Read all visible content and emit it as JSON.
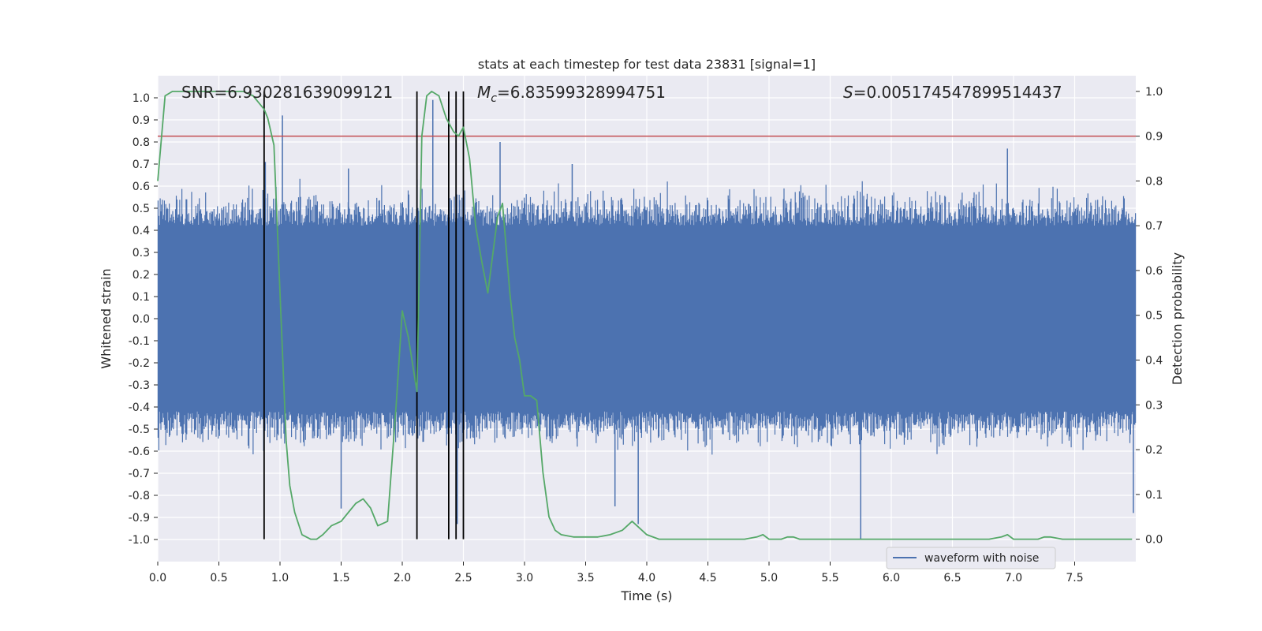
{
  "chart_data": {
    "type": "line",
    "title": "stats at each timestep for test data 23831 [signal=1]",
    "xlabel": "Time (s)",
    "ylabel": "Whitened strain",
    "ylabel_right": "Detection probability",
    "xlim": [
      0.0,
      8.0
    ],
    "ylim": [
      -1.1,
      1.1
    ],
    "ylim_right": [
      -0.05,
      1.035
    ],
    "x_ticks": [
      "0.0",
      "0.5",
      "1.0",
      "1.5",
      "2.0",
      "2.5",
      "3.0",
      "3.5",
      "4.0",
      "4.5",
      "5.0",
      "5.5",
      "6.0",
      "6.5",
      "7.0",
      "7.5"
    ],
    "y_ticks": [
      "1.0",
      "0.9",
      "0.8",
      "0.7",
      "0.6",
      "0.5",
      "0.4",
      "0.3",
      "0.2",
      "0.1",
      "0.0",
      "-0.1",
      "-0.2",
      "-0.3",
      "-0.4",
      "-0.5",
      "-0.6",
      "-0.7",
      "-0.8",
      "-0.9",
      "-1.0"
    ],
    "y_ticks_right": [
      "1.0",
      "0.9",
      "0.8",
      "0.7",
      "0.6",
      "0.5",
      "0.4",
      "0.3",
      "0.2",
      "0.1",
      "0.0"
    ],
    "annotations": {
      "snr": "SNR=6.930281639099121",
      "mc_symbol": "M",
      "mc_subscript": "c",
      "mc_value": "=6.83599328994751",
      "s_symbol": "S",
      "s_value": "=0.005174547899514437"
    },
    "legend": {
      "label": "waveform with noise",
      "location": "lower right"
    },
    "threshold": {
      "value": 0.9,
      "axis": "right",
      "color": "#c44e52"
    },
    "vertical_lines": [
      0.87,
      2.12,
      2.38,
      2.44,
      2.5
    ],
    "series": [
      {
        "name": "waveform with noise",
        "axis": "left",
        "style": "noise_band",
        "color": "#4c72b0",
        "core_amplitude": 0.42,
        "spikes": [
          {
            "x": 1.02,
            "y": 0.92
          },
          {
            "x": 2.25,
            "y": 0.99
          },
          {
            "x": 2.44,
            "y": 0.93
          },
          {
            "x": 2.8,
            "y": 0.8
          },
          {
            "x": 0.88,
            "y": 0.71
          },
          {
            "x": 6.95,
            "y": 0.77
          },
          {
            "x": 5.75,
            "y": -1.0
          },
          {
            "x": 7.98,
            "y": -0.88
          },
          {
            "x": 3.93,
            "y": -0.93
          },
          {
            "x": 2.45,
            "y": -0.93
          },
          {
            "x": 3.74,
            "y": -0.85
          },
          {
            "x": 1.5,
            "y": -0.86
          },
          {
            "x": 1.56,
            "y": 0.68
          },
          {
            "x": 3.39,
            "y": 0.7
          }
        ]
      },
      {
        "name": "detection probability",
        "axis": "right",
        "color": "#55a868",
        "x": [
          0.0,
          0.06,
          0.12,
          0.25,
          0.4,
          0.55,
          0.7,
          0.78,
          0.87,
          0.9,
          0.95,
          1.0,
          1.05,
          1.08,
          1.12,
          1.18,
          1.25,
          1.3,
          1.35,
          1.42,
          1.5,
          1.56,
          1.62,
          1.68,
          1.74,
          1.8,
          1.88,
          1.95,
          2.0,
          2.05,
          2.12,
          2.16,
          2.2,
          2.24,
          2.3,
          2.36,
          2.42,
          2.46,
          2.5,
          2.55,
          2.6,
          2.65,
          2.7,
          2.78,
          2.82,
          2.88,
          2.92,
          2.96,
          3.0,
          3.05,
          3.1,
          3.15,
          3.2,
          3.25,
          3.3,
          3.4,
          3.5,
          3.6,
          3.7,
          3.8,
          3.88,
          3.92,
          4.0,
          4.1,
          4.2,
          4.5,
          4.8,
          4.9,
          4.95,
          5.0,
          5.05,
          5.1,
          5.15,
          5.2,
          5.25,
          5.5,
          5.8,
          5.9,
          6.0,
          6.2,
          6.5,
          6.8,
          6.9,
          6.95,
          7.0,
          7.05,
          7.2,
          7.25,
          7.3,
          7.4,
          7.6,
          7.7,
          7.8,
          7.97
        ],
        "y": [
          0.8,
          0.99,
          1.0,
          1.0,
          1.0,
          1.0,
          1.0,
          0.99,
          0.96,
          0.94,
          0.88,
          0.55,
          0.22,
          0.12,
          0.06,
          0.01,
          0.0,
          0.0,
          0.01,
          0.03,
          0.04,
          0.06,
          0.08,
          0.09,
          0.07,
          0.03,
          0.04,
          0.3,
          0.51,
          0.45,
          0.33,
          0.9,
          0.99,
          1.0,
          0.99,
          0.94,
          0.91,
          0.9,
          0.92,
          0.85,
          0.7,
          0.62,
          0.55,
          0.72,
          0.75,
          0.55,
          0.45,
          0.4,
          0.32,
          0.32,
          0.31,
          0.15,
          0.05,
          0.02,
          0.01,
          0.005,
          0.005,
          0.005,
          0.01,
          0.02,
          0.04,
          0.03,
          0.01,
          0.0,
          0.0,
          0.0,
          0.0,
          0.005,
          0.01,
          0.0,
          0.0,
          0.0,
          0.005,
          0.005,
          0.0,
          0.0,
          0.0,
          0.0,
          0.0,
          0.0,
          0.0,
          0.0,
          0.005,
          0.01,
          0.0,
          0.0,
          0.0,
          0.005,
          0.005,
          0.0,
          0.0,
          0.0,
          0.0,
          0.0
        ]
      }
    ]
  }
}
